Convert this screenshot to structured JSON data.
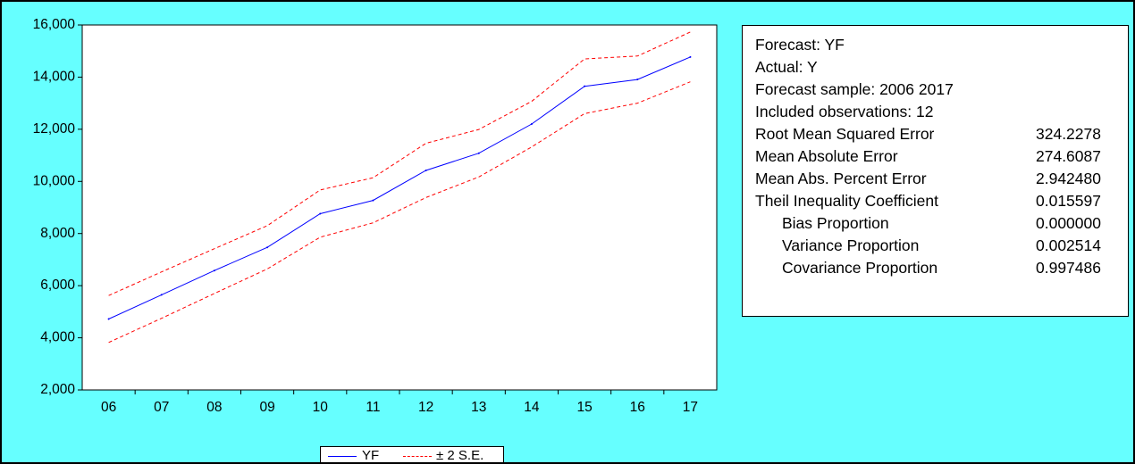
{
  "colors": {
    "background": "#66ffff",
    "plot_area": "#ffffff",
    "forecast_line": "#0000ff",
    "se_bands": "#ff0000"
  },
  "chart_data": {
    "type": "line",
    "x": [
      "06",
      "07",
      "08",
      "09",
      "10",
      "11",
      "12",
      "13",
      "14",
      "15",
      "16",
      "17"
    ],
    "ylim": [
      2000,
      16000
    ],
    "yticks": [
      "2,000",
      "4,000",
      "6,000",
      "8,000",
      "10,000",
      "12,000",
      "14,000",
      "16,000"
    ],
    "grid": false,
    "legend_position": "bottom",
    "series": [
      {
        "name": "YF",
        "style": "solid",
        "color": "#0000ff",
        "values": [
          4720,
          5650,
          6580,
          7470,
          8760,
          9270,
          10420,
          11080,
          12200,
          13650,
          13910,
          14770
        ]
      },
      {
        "name": "± 2 S.E.",
        "style": "dashed",
        "color": "#ff0000",
        "upper": [
          5620,
          6530,
          7420,
          8300,
          9670,
          10140,
          11460,
          11990,
          13070,
          14700,
          14810,
          15730
        ],
        "lower": [
          3820,
          4750,
          5700,
          6640,
          7860,
          8410,
          9380,
          10170,
          11320,
          12600,
          13000,
          13820
        ]
      }
    ]
  },
  "stats": {
    "lines": [
      {
        "label": "Forecast: YF",
        "value": ""
      },
      {
        "label": "Actual: Y",
        "value": ""
      },
      {
        "label": "Forecast sample: 2006 2017",
        "value": ""
      },
      {
        "label": "Included observations: 12",
        "value": ""
      },
      {
        "label": "Root Mean Squared Error",
        "value": "324.2278"
      },
      {
        "label": "Mean Absolute Error",
        "value": "274.6087"
      },
      {
        "label": "Mean Abs. Percent Error",
        "value": "2.942480"
      },
      {
        "label": "Theil Inequality Coefficient",
        "value": "0.015597"
      },
      {
        "label": "Bias Proportion",
        "value": "0.000000",
        "indent": true
      },
      {
        "label": "Variance Proportion",
        "value": "0.002514",
        "indent": true
      },
      {
        "label": "Covariance Proportion",
        "value": "0.997486",
        "indent": true
      }
    ]
  },
  "legend": {
    "yf_label": "YF",
    "se_label": "± 2 S.E."
  }
}
